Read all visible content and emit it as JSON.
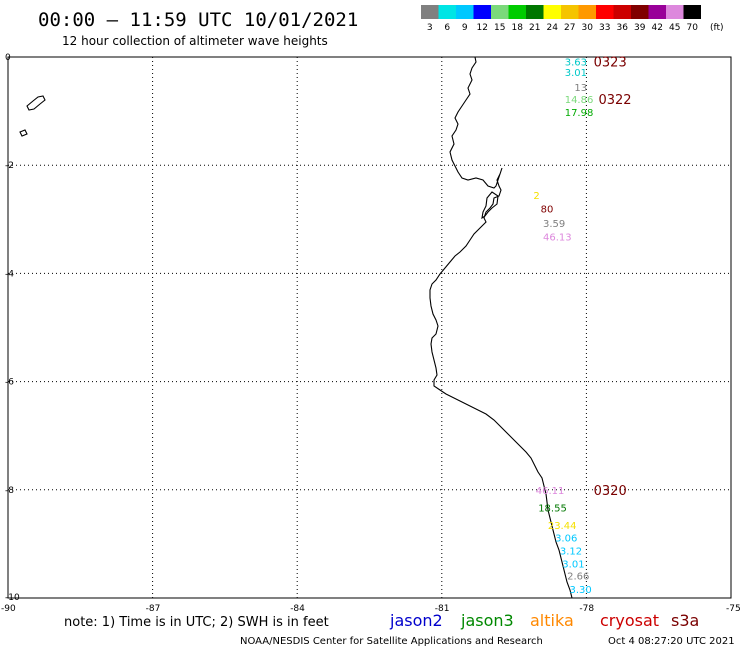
{
  "header": {
    "title": "00:00 – 11:59 UTC 10/01/2021",
    "subtitle": "12 hour collection of altimeter wave heights"
  },
  "legend": {
    "unit": "(ft)",
    "bins": [
      {
        "label": "3",
        "color": "#808080"
      },
      {
        "label": "6",
        "color": "#00e5e5"
      },
      {
        "label": "9",
        "color": "#00c8ff"
      },
      {
        "label": "12",
        "color": "#0000ff"
      },
      {
        "label": "15",
        "color": "#7bd97b"
      },
      {
        "label": "18",
        "color": "#00cc00"
      },
      {
        "label": "21",
        "color": "#007700"
      },
      {
        "label": "24",
        "color": "#ffff00"
      },
      {
        "label": "27",
        "color": "#f5c400"
      },
      {
        "label": "30",
        "color": "#ff9900"
      },
      {
        "label": "33",
        "color": "#ff0000"
      },
      {
        "label": "36",
        "color": "#cc0000"
      },
      {
        "label": "39",
        "color": "#800000"
      },
      {
        "label": "42",
        "color": "#990099"
      },
      {
        "label": "45",
        "color": "#dd88dd"
      },
      {
        "label": "70",
        "color": "#000000"
      }
    ]
  },
  "axes": {
    "x_ticks": [
      "-90",
      "-87",
      "-84",
      "-81",
      "-78",
      "-75"
    ],
    "y_ticks": [
      "0",
      "-2",
      "-4",
      "-6",
      "-8",
      "-10"
    ],
    "lon_range": [
      -90,
      -75
    ],
    "lat_range": [
      -10,
      0
    ],
    "grid": "dotted"
  },
  "wave_heights": [
    {
      "lon": -78.45,
      "lat": -0.08,
      "value": "3.63",
      "color": "#00c8c8"
    },
    {
      "lon": -78.45,
      "lat": -0.28,
      "value": "3.01",
      "color": "#00c8c8"
    },
    {
      "lon": -78.25,
      "lat": -0.55,
      "value": "13",
      "color": "#808080"
    },
    {
      "lon": -78.45,
      "lat": -0.78,
      "value": "14.86",
      "color": "#7bd97b"
    },
    {
      "lon": -78.45,
      "lat": -1.02,
      "value": "17.98",
      "color": "#00aa00"
    },
    {
      "lon": -79.1,
      "lat": -2.55,
      "value": "2",
      "color": "#f5e000"
    },
    {
      "lon": -78.95,
      "lat": -2.8,
      "value": "80",
      "color": "#800000"
    },
    {
      "lon": -78.9,
      "lat": -3.07,
      "value": "3.59",
      "color": "#808080"
    },
    {
      "lon": -78.9,
      "lat": -3.32,
      "value": "46.13",
      "color": "#dd88dd"
    },
    {
      "lon": -79.05,
      "lat": -8.0,
      "value": "46.11",
      "color": "#dd88dd"
    },
    {
      "lon": -79.0,
      "lat": -8.33,
      "value": "18.55",
      "color": "#007700"
    },
    {
      "lon": -78.8,
      "lat": -8.65,
      "value": "23.44",
      "color": "#f5e000"
    },
    {
      "lon": -78.65,
      "lat": -8.88,
      "value": "3.06",
      "color": "#00c8ff"
    },
    {
      "lon": -78.55,
      "lat": -9.12,
      "value": "3.12",
      "color": "#00c8ff"
    },
    {
      "lon": -78.5,
      "lat": -9.36,
      "value": "3.01",
      "color": "#00c8ff"
    },
    {
      "lon": -78.4,
      "lat": -9.58,
      "value": "2.66",
      "color": "#808080"
    },
    {
      "lon": -78.35,
      "lat": -9.83,
      "value": "3.30",
      "color": "#00c8ff"
    }
  ],
  "pass_times": [
    {
      "lon": -77.85,
      "lat": -0.08,
      "label": "0323"
    },
    {
      "lon": -77.75,
      "lat": -0.78,
      "label": "0322"
    },
    {
      "lon": -77.85,
      "lat": -8.0,
      "label": "0320"
    }
  ],
  "note": "note: 1) Time is in UTC; 2) SWH is in feet",
  "satellites": [
    {
      "name": "jason2",
      "color": "#0000cc"
    },
    {
      "name": "jason3",
      "color": "#008800"
    },
    {
      "name": "altika",
      "color": "#ff8800"
    },
    {
      "name": "cryosat",
      "color": "#cc0000"
    },
    {
      "name": "s3a",
      "color": "#7a0000"
    }
  ],
  "credit": "NOAA/NESDIS Center for Satellite Applications and Research",
  "timestamp": "Oct  4 08:27:20 UTC 2021"
}
